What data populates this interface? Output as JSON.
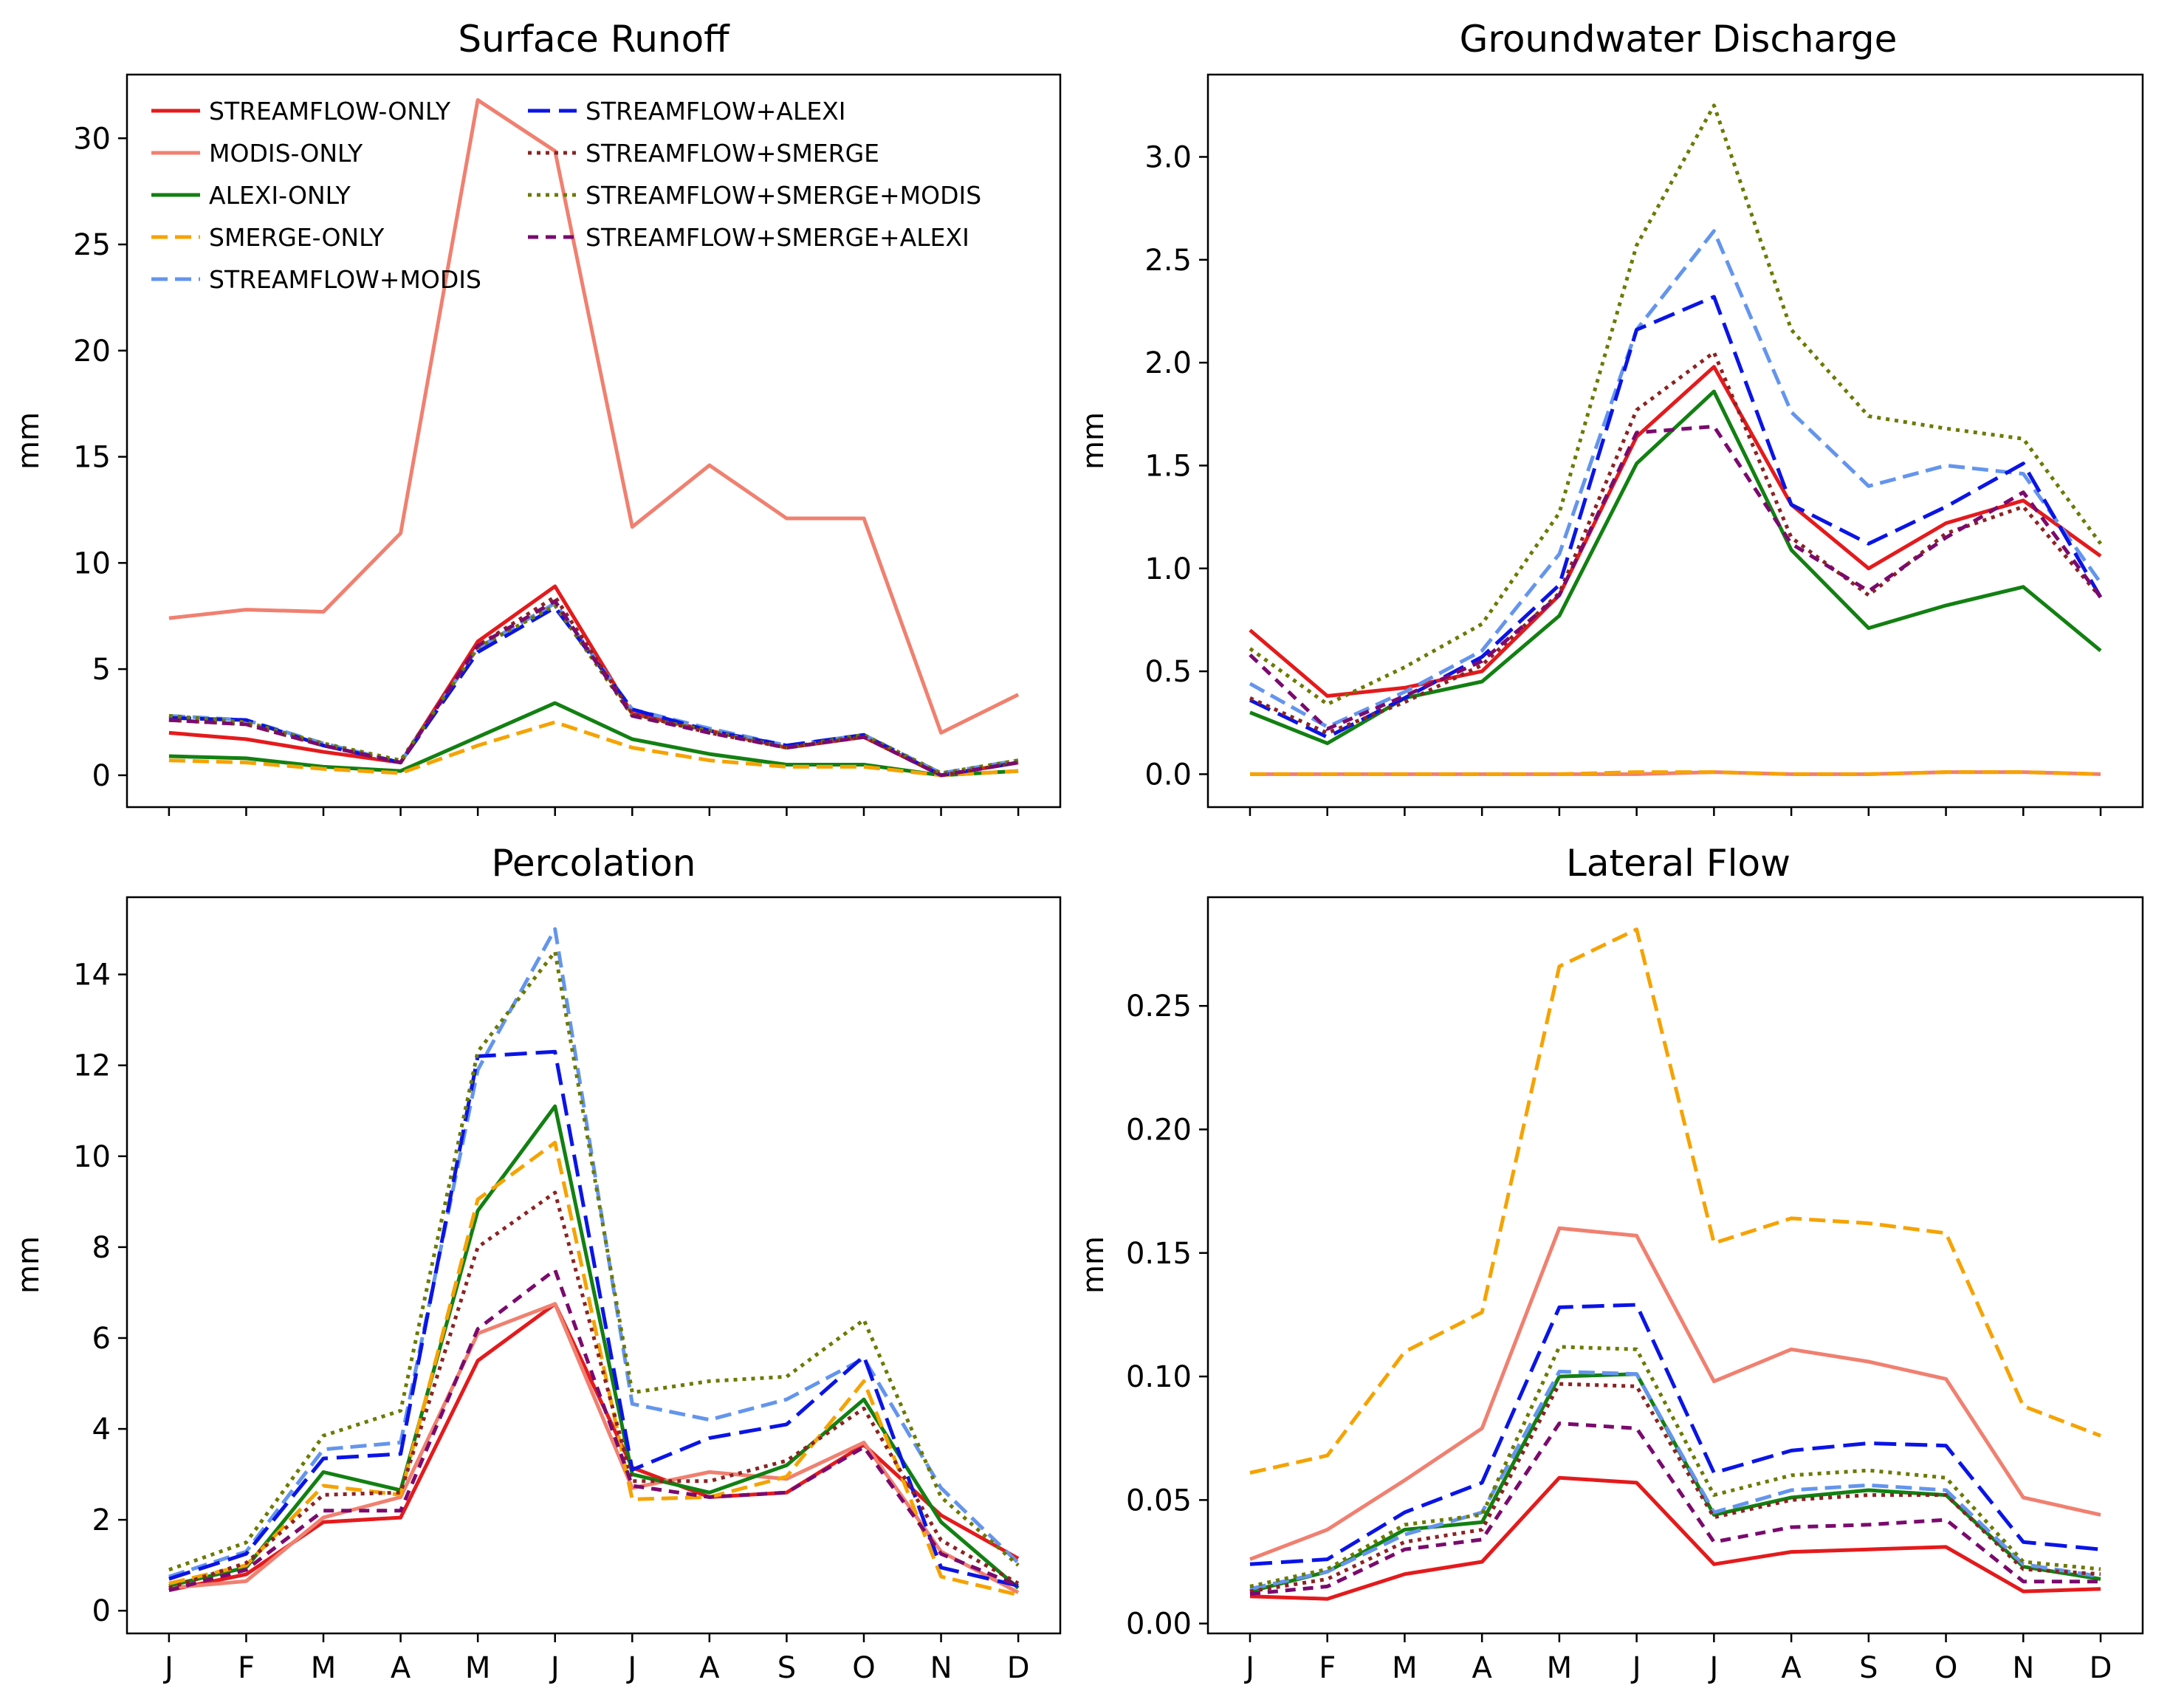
{
  "series_styles": [
    {
      "name": "STREAMFLOW-ONLY",
      "color": "#e41a1c",
      "dash": "solid"
    },
    {
      "name": "MODIS-ONLY",
      "color": "#f08070",
      "dash": "solid"
    },
    {
      "name": "ALEXI-ONLY",
      "color": "#128012",
      "dash": "solid"
    },
    {
      "name": "SMERGE-ONLY",
      "color": "#f5a300",
      "dash": "dashed"
    },
    {
      "name": "STREAMFLOW+MODIS",
      "color": "#6495ed",
      "dash": "dashed"
    },
    {
      "name": "STREAMFLOW+ALEXI",
      "color": "#0a14e6",
      "dash": "longdash"
    },
    {
      "name": "STREAMFLOW+SMERGE",
      "color": "#8b2323",
      "dash": "dotted"
    },
    {
      "name": "STREAMFLOW+SMERGE+MODIS",
      "color": "#6b7a00",
      "dash": "dotted"
    },
    {
      "name": "STREAMFLOW+SMERGE+ALEXI",
      "color": "#7a0a6e",
      "dash": "dashdense"
    }
  ],
  "chart_data": [
    {
      "type": "line",
      "title": "Surface Runoff",
      "ylabel": "mm",
      "xlabel": "",
      "categories": [
        "J",
        "F",
        "M",
        "A",
        "M",
        "J",
        "J",
        "A",
        "S",
        "O",
        "N",
        "D"
      ],
      "ylim": [
        -1.5,
        33
      ],
      "yticks": [
        0,
        5,
        10,
        15,
        20,
        25,
        30
      ],
      "ytick_labels": [
        "0",
        "5",
        "10",
        "15",
        "20",
        "25",
        "30"
      ],
      "show_x_labels": false,
      "legend": "top-left",
      "series": [
        {
          "name": "STREAMFLOW-ONLY",
          "values": [
            2.0,
            1.7,
            1.1,
            0.6,
            6.3,
            8.9,
            2.9,
            2.1,
            1.3,
            1.8,
            0.0,
            0.6
          ]
        },
        {
          "name": "MODIS-ONLY",
          "values": [
            7.4,
            7.8,
            7.7,
            11.4,
            31.8,
            29.4,
            11.7,
            14.6,
            12.1,
            12.1,
            2.0,
            3.8
          ]
        },
        {
          "name": "ALEXI-ONLY",
          "values": [
            0.9,
            0.8,
            0.4,
            0.2,
            1.8,
            3.4,
            1.7,
            1.0,
            0.5,
            0.5,
            0.0,
            0.2
          ]
        },
        {
          "name": "SMERGE-ONLY",
          "values": [
            0.7,
            0.6,
            0.3,
            0.1,
            1.4,
            2.5,
            1.3,
            0.7,
            0.4,
            0.4,
            0.0,
            0.2
          ]
        },
        {
          "name": "STREAMFLOW+MODIS",
          "values": [
            2.8,
            2.6,
            1.5,
            0.6,
            6.0,
            8.1,
            3.1,
            2.2,
            1.4,
            1.9,
            0.1,
            0.7
          ]
        },
        {
          "name": "STREAMFLOW+ALEXI",
          "values": [
            2.7,
            2.6,
            1.4,
            0.6,
            5.8,
            7.9,
            3.1,
            2.1,
            1.4,
            1.9,
            0.0,
            0.6
          ]
        },
        {
          "name": "STREAMFLOW+SMERGE",
          "values": [
            2.6,
            2.4,
            1.4,
            0.6,
            6.1,
            8.4,
            2.9,
            2.0,
            1.3,
            1.8,
            0.0,
            0.6
          ]
        },
        {
          "name": "STREAMFLOW+SMERGE+MODIS",
          "values": [
            2.8,
            2.5,
            1.5,
            0.7,
            6.0,
            8.0,
            2.8,
            2.1,
            1.3,
            1.9,
            0.1,
            0.7
          ]
        },
        {
          "name": "STREAMFLOW+SMERGE+ALEXI",
          "values": [
            2.6,
            2.4,
            1.4,
            0.6,
            6.1,
            8.2,
            2.8,
            2.0,
            1.3,
            1.8,
            0.0,
            0.6
          ]
        }
      ]
    },
    {
      "type": "line",
      "title": "Groundwater Discharge",
      "ylabel": "mm",
      "xlabel": "",
      "categories": [
        "J",
        "F",
        "M",
        "A",
        "M",
        "J",
        "J",
        "A",
        "S",
        "O",
        "N",
        "D"
      ],
      "ylim": [
        -0.16,
        3.4
      ],
      "yticks": [
        0,
        0.5,
        1.0,
        1.5,
        2.0,
        2.5,
        3.0
      ],
      "ytick_labels": [
        "0.0",
        "0.5",
        "1.0",
        "1.5",
        "2.0",
        "2.5",
        "3.0"
      ],
      "show_x_labels": false,
      "series": [
        {
          "name": "STREAMFLOW-ONLY",
          "values": [
            0.7,
            0.38,
            0.42,
            0.5,
            0.87,
            1.64,
            1.98,
            1.31,
            1.0,
            1.22,
            1.33,
            1.06
          ]
        },
        {
          "name": "MODIS-ONLY",
          "values": [
            0.0,
            0.0,
            0.0,
            0.0,
            0.0,
            0.0,
            0.01,
            0.0,
            0.0,
            0.01,
            0.01,
            0.0
          ]
        },
        {
          "name": "ALEXI-ONLY",
          "values": [
            0.3,
            0.15,
            0.37,
            0.45,
            0.77,
            1.51,
            1.86,
            1.09,
            0.71,
            0.82,
            0.91,
            0.6
          ]
        },
        {
          "name": "SMERGE-ONLY",
          "values": [
            0.0,
            0.0,
            0.0,
            0.0,
            0.0,
            0.01,
            0.01,
            0.0,
            0.0,
            0.01,
            0.01,
            0.0
          ]
        },
        {
          "name": "STREAMFLOW+MODIS",
          "values": [
            0.44,
            0.23,
            0.4,
            0.6,
            1.07,
            2.16,
            2.64,
            1.76,
            1.4,
            1.5,
            1.46,
            0.93
          ]
        },
        {
          "name": "STREAMFLOW+ALEXI",
          "values": [
            0.36,
            0.18,
            0.37,
            0.57,
            0.92,
            2.16,
            2.32,
            1.31,
            1.12,
            1.3,
            1.51,
            0.86
          ]
        },
        {
          "name": "STREAMFLOW+SMERGE",
          "values": [
            0.37,
            0.2,
            0.35,
            0.53,
            0.88,
            1.77,
            2.05,
            1.15,
            0.87,
            1.17,
            1.3,
            0.86
          ]
        },
        {
          "name": "STREAMFLOW+SMERGE+MODIS",
          "values": [
            0.61,
            0.34,
            0.52,
            0.73,
            1.27,
            2.57,
            3.25,
            2.16,
            1.74,
            1.68,
            1.63,
            1.12
          ]
        },
        {
          "name": "STREAMFLOW+SMERGE+ALEXI",
          "values": [
            0.58,
            0.22,
            0.38,
            0.55,
            0.87,
            1.66,
            1.69,
            1.12,
            0.89,
            1.15,
            1.37,
            0.86
          ]
        }
      ]
    },
    {
      "type": "line",
      "title": "Percolation",
      "ylabel": "mm",
      "xlabel": "",
      "categories": [
        "J",
        "F",
        "M",
        "A",
        "M",
        "J",
        "J",
        "A",
        "S",
        "O",
        "N",
        "D"
      ],
      "ylim": [
        -0.5,
        15.7
      ],
      "yticks": [
        0,
        2,
        4,
        6,
        8,
        10,
        12,
        14
      ],
      "ytick_labels": [
        "0",
        "2",
        "4",
        "6",
        "8",
        "10",
        "12",
        "14"
      ],
      "show_x_labels": true,
      "series": [
        {
          "name": "STREAMFLOW-ONLY",
          "values": [
            0.45,
            0.8,
            1.95,
            2.05,
            5.5,
            6.75,
            3.15,
            2.5,
            2.6,
            3.65,
            2.1,
            1.15
          ]
        },
        {
          "name": "MODIS-ONLY",
          "values": [
            0.5,
            0.65,
            2.05,
            2.5,
            6.1,
            6.75,
            2.7,
            3.05,
            2.9,
            3.7,
            1.3,
            0.4
          ]
        },
        {
          "name": "ALEXI-ONLY",
          "values": [
            0.55,
            0.95,
            3.05,
            2.65,
            8.8,
            11.1,
            3.0,
            2.6,
            3.2,
            4.65,
            1.95,
            0.5
          ]
        },
        {
          "name": "SMERGE-ONLY",
          "values": [
            0.6,
            1.0,
            2.75,
            2.55,
            9.05,
            10.3,
            2.45,
            2.5,
            2.95,
            5.05,
            0.75,
            0.35
          ]
        },
        {
          "name": "STREAMFLOW+MODIS",
          "values": [
            0.75,
            1.3,
            3.55,
            3.7,
            11.9,
            15.0,
            4.55,
            4.2,
            4.65,
            5.55,
            2.7,
            1.05
          ]
        },
        {
          "name": "STREAMFLOW+ALEXI",
          "values": [
            0.7,
            1.25,
            3.35,
            3.45,
            12.2,
            12.3,
            3.1,
            3.8,
            4.1,
            5.6,
            0.95,
            0.55
          ]
        },
        {
          "name": "STREAMFLOW+SMERGE",
          "values": [
            0.5,
            1.05,
            2.55,
            2.6,
            8.0,
            9.2,
            2.85,
            2.85,
            3.3,
            4.45,
            1.55,
            0.6
          ]
        },
        {
          "name": "STREAMFLOW+SMERGE+MODIS",
          "values": [
            0.9,
            1.5,
            3.85,
            4.4,
            12.3,
            14.5,
            4.8,
            5.05,
            5.15,
            6.4,
            2.5,
            1.0
          ]
        },
        {
          "name": "STREAMFLOW+SMERGE+ALEXI",
          "values": [
            0.45,
            0.9,
            2.2,
            2.2,
            6.2,
            7.5,
            2.75,
            2.5,
            2.6,
            3.6,
            1.25,
            0.55
          ]
        }
      ]
    },
    {
      "type": "line",
      "title": "Lateral Flow",
      "ylabel": "mm",
      "xlabel": "",
      "categories": [
        "J",
        "F",
        "M",
        "A",
        "M",
        "J",
        "J",
        "A",
        "S",
        "O",
        "N",
        "D"
      ],
      "ylim": [
        -0.004,
        0.294
      ],
      "yticks": [
        0,
        0.05,
        0.1,
        0.15,
        0.2,
        0.25
      ],
      "ytick_labels": [
        "0.00",
        "0.05",
        "0.10",
        "0.15",
        "0.20",
        "0.25"
      ],
      "show_x_labels": true,
      "series": [
        {
          "name": "STREAMFLOW-ONLY",
          "values": [
            0.011,
            0.01,
            0.02,
            0.025,
            0.059,
            0.057,
            0.024,
            0.029,
            0.03,
            0.031,
            0.013,
            0.014
          ]
        },
        {
          "name": "MODIS-ONLY",
          "values": [
            0.026,
            0.038,
            0.058,
            0.079,
            0.16,
            0.157,
            0.098,
            0.111,
            0.106,
            0.099,
            0.051,
            0.044
          ]
        },
        {
          "name": "ALEXI-ONLY",
          "values": [
            0.013,
            0.021,
            0.038,
            0.041,
            0.1,
            0.101,
            0.044,
            0.051,
            0.054,
            0.052,
            0.023,
            0.018
          ]
        },
        {
          "name": "SMERGE-ONLY",
          "values": [
            0.061,
            0.068,
            0.11,
            0.126,
            0.266,
            0.281,
            0.154,
            0.164,
            0.162,
            0.158,
            0.088,
            0.076
          ]
        },
        {
          "name": "STREAMFLOW+MODIS",
          "values": [
            0.014,
            0.021,
            0.036,
            0.045,
            0.102,
            0.101,
            0.045,
            0.054,
            0.056,
            0.054,
            0.024,
            0.019
          ]
        },
        {
          "name": "STREAMFLOW+ALEXI",
          "values": [
            0.024,
            0.026,
            0.045,
            0.057,
            0.128,
            0.129,
            0.061,
            0.07,
            0.073,
            0.072,
            0.033,
            0.03
          ]
        },
        {
          "name": "STREAMFLOW+SMERGE",
          "values": [
            0.013,
            0.018,
            0.033,
            0.038,
            0.097,
            0.096,
            0.043,
            0.05,
            0.052,
            0.052,
            0.022,
            0.02
          ]
        },
        {
          "name": "STREAMFLOW+SMERGE+MODIS",
          "values": [
            0.015,
            0.022,
            0.04,
            0.044,
            0.112,
            0.111,
            0.052,
            0.06,
            0.062,
            0.059,
            0.025,
            0.022
          ]
        },
        {
          "name": "STREAMFLOW+SMERGE+ALEXI",
          "values": [
            0.012,
            0.015,
            0.03,
            0.034,
            0.081,
            0.079,
            0.033,
            0.039,
            0.04,
            0.042,
            0.017,
            0.017
          ]
        }
      ]
    }
  ]
}
